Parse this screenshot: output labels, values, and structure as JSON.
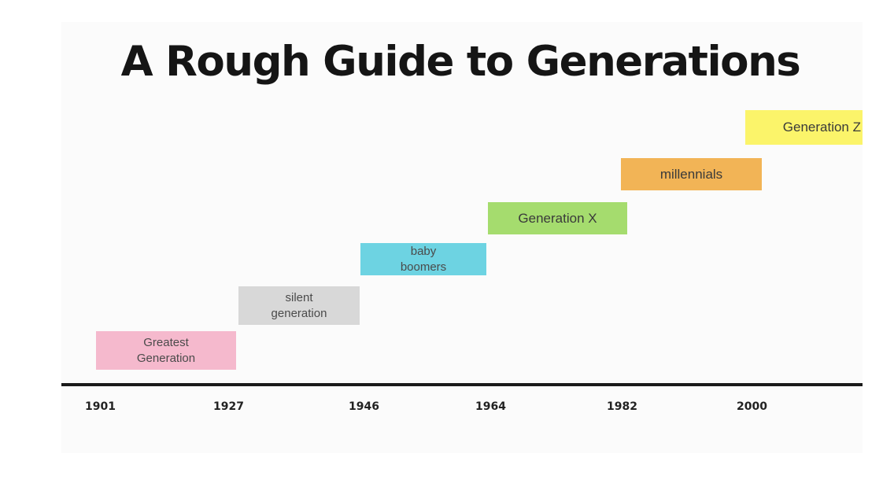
{
  "title": "A Rough Guide to Generations",
  "generations": [
    {
      "lines": [
        "Greatest",
        "Generation"
      ],
      "color": "#f5b9cd",
      "start_year": 1901,
      "end_year": 1927
    },
    {
      "lines": [
        "silent",
        "generation"
      ],
      "color": "#d8d8d8",
      "start_year": 1927,
      "end_year": 1946
    },
    {
      "lines": [
        "baby",
        "boomers"
      ],
      "color": "#6dd3e2",
      "start_year": 1946,
      "end_year": 1964
    },
    {
      "lines": [
        "Generation X"
      ],
      "color": "#a5dc6e",
      "start_year": 1964,
      "end_year": 1982
    },
    {
      "lines": [
        "millennials"
      ],
      "color": "#f2b456",
      "start_year": 1982,
      "end_year": 2000
    },
    {
      "lines": [
        "Generation Z"
      ],
      "color": "#fbf46a",
      "start_year": 2000
    }
  ],
  "axis": {
    "ticks": [
      "1901",
      "1927",
      "1946",
      "1964",
      "1982",
      "2000"
    ],
    "line_color": "#1a1a1a"
  }
}
